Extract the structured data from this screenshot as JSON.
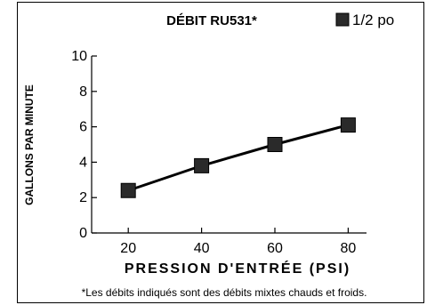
{
  "chart_data": {
    "type": "line",
    "title": "DÉBIT RU531*",
    "xlabel": "PRESSION D'ENTRÉE (PSI)",
    "ylabel": "GALLONS PAR MINUTE",
    "legend": {
      "position": "top-right",
      "marker": "square"
    },
    "x_ticks": [
      20,
      40,
      60,
      80
    ],
    "y_ticks": [
      0,
      2,
      4,
      6,
      8,
      10
    ],
    "xlim": [
      10,
      85
    ],
    "ylim": [
      0,
      10
    ],
    "grid": false,
    "series": [
      {
        "name": "1/2 po",
        "color": "#2a2a2a",
        "x": [
          20,
          40,
          60,
          80
        ],
        "y": [
          2.4,
          3.8,
          5.0,
          6.1
        ]
      }
    ],
    "footnote": "*Les débits indiqués sont des débits mixtes chauds et froids."
  }
}
